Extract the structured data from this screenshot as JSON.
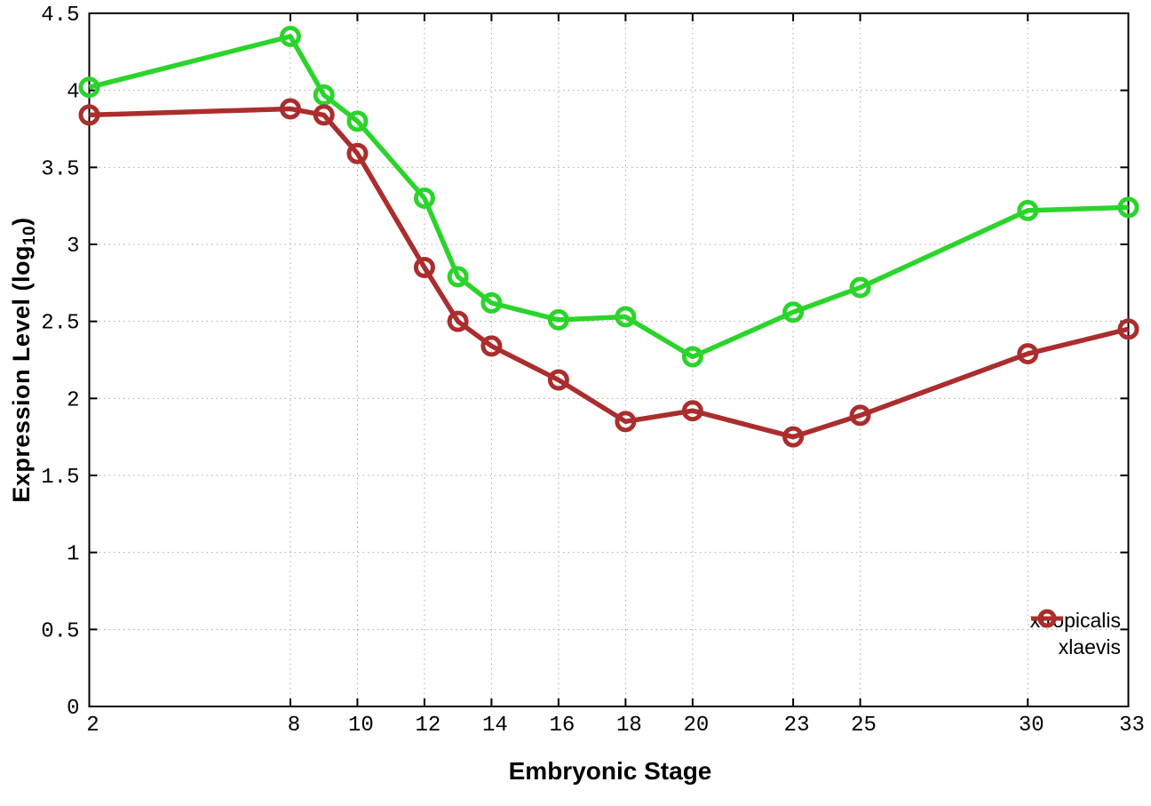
{
  "chart_data": {
    "type": "line",
    "title": "",
    "xlabel": "Embryonic Stage",
    "ylabel": "Expression Level (log10)",
    "ylabel_parts": {
      "main": "Expression Level (log",
      "subscript": "10",
      "end": ")"
    },
    "xlim": [
      2,
      33
    ],
    "ylim": [
      0,
      4.5
    ],
    "x_ticks": [
      2,
      8,
      10,
      12,
      14,
      16,
      18,
      20,
      23,
      25,
      30,
      33
    ],
    "y_ticks": [
      0,
      0.5,
      1,
      1.5,
      2,
      2.5,
      3,
      3.5,
      4,
      4.5
    ],
    "grid": true,
    "grid_style": "dotted",
    "marker": "open-circle",
    "legend_position": "inside-bottom-right",
    "colors": {
      "xtropicalis": "#2bd42b",
      "xlaevis": "#ab2d2d",
      "grid": "#a8a8a8",
      "axis": "#000000"
    },
    "x": [
      2,
      8,
      9,
      10,
      12,
      13,
      14,
      16,
      18,
      20,
      23,
      25,
      30,
      33
    ],
    "series": [
      {
        "name": "xtropicalis",
        "color": "#2bd42b",
        "values": [
          4.02,
          4.35,
          3.97,
          3.8,
          3.3,
          2.79,
          2.62,
          2.51,
          2.53,
          2.27,
          2.56,
          2.72,
          3.22,
          3.24
        ]
      },
      {
        "name": "xlaevis",
        "color": "#ab2d2d",
        "values": [
          3.84,
          3.88,
          3.84,
          3.59,
          2.85,
          2.5,
          2.34,
          2.12,
          1.85,
          1.92,
          1.75,
          1.89,
          2.29,
          2.45
        ]
      }
    ],
    "legend": {
      "items": [
        {
          "label": "xtropicalis"
        },
        {
          "label": "xlaevis"
        }
      ]
    }
  }
}
